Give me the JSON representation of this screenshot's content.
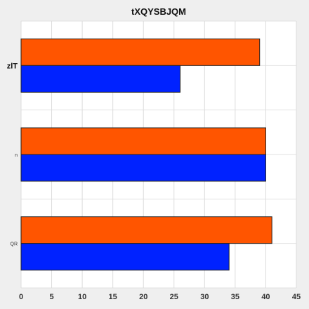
{
  "chart_data": {
    "type": "bar",
    "orientation": "horizontal",
    "title": "tXQYSBJQM",
    "categories": [
      "zlT",
      "n",
      "QR"
    ],
    "series": [
      {
        "color": "#ff5500",
        "values": [
          39,
          40,
          41
        ]
      },
      {
        "color": "#0022ff",
        "values": [
          26,
          40,
          34
        ]
      }
    ],
    "xlim": [
      0,
      45
    ],
    "xticks": [
      0,
      5,
      10,
      15,
      20,
      25,
      30,
      35,
      40,
      45
    ],
    "grid": true,
    "xlabel": "",
    "ylabel": ""
  }
}
